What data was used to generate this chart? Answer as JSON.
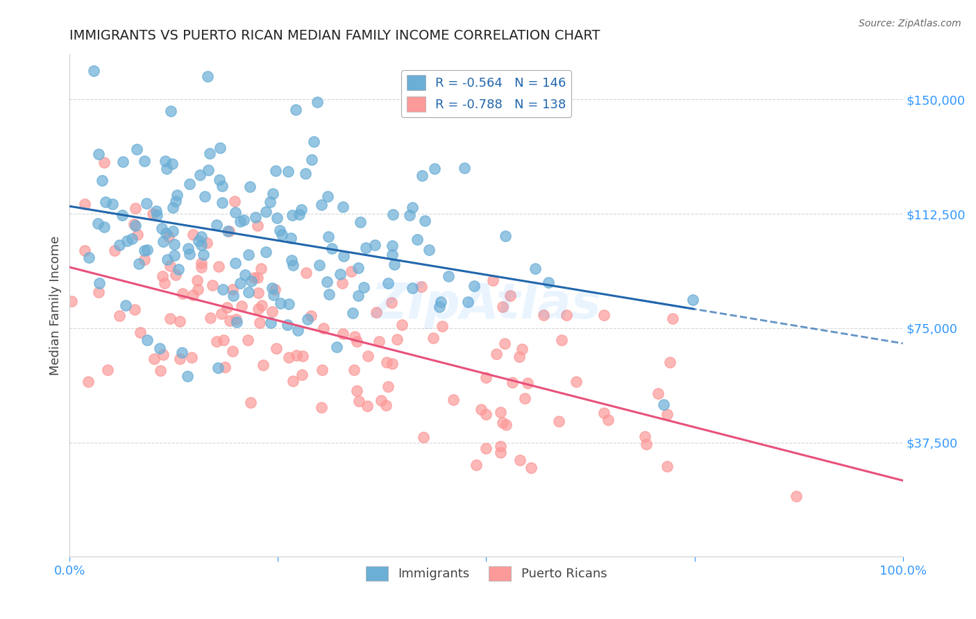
{
  "title": "IMMIGRANTS VS PUERTO RICAN MEDIAN FAMILY INCOME CORRELATION CHART",
  "source": "Source: ZipAtlas.com",
  "xlabel": "",
  "ylabel": "Median Family Income",
  "xlim": [
    0.0,
    1.0
  ],
  "ylim": [
    0,
    165000
  ],
  "yticks": [
    37500,
    75000,
    112500,
    150000
  ],
  "ytick_labels": [
    "$37,500",
    "$75,000",
    "$112,500",
    "$150,000"
  ],
  "blue_color": "#6baed6",
  "pink_color": "#fb9a99",
  "trend_blue": "#2166ac",
  "trend_pink": "#e8507a",
  "legend_blue_text": "R = -0.564   N = 146",
  "legend_pink_text": "R = -0.788   N = 138",
  "legend_blue_label": "Immigrants",
  "legend_pink_label": "Puerto Ricans",
  "R_blue": -0.564,
  "N_blue": 146,
  "R_pink": -0.788,
  "N_pink": 138,
  "watermark": "ZipAtlas",
  "blue_intercept": 115000,
  "blue_slope": -45000,
  "pink_intercept": 95000,
  "pink_slope": -70000,
  "title_color": "#222222",
  "axis_label_color": "#444444",
  "tick_color": "#3399ff",
  "grid_color": "#cccccc",
  "background": "#ffffff"
}
